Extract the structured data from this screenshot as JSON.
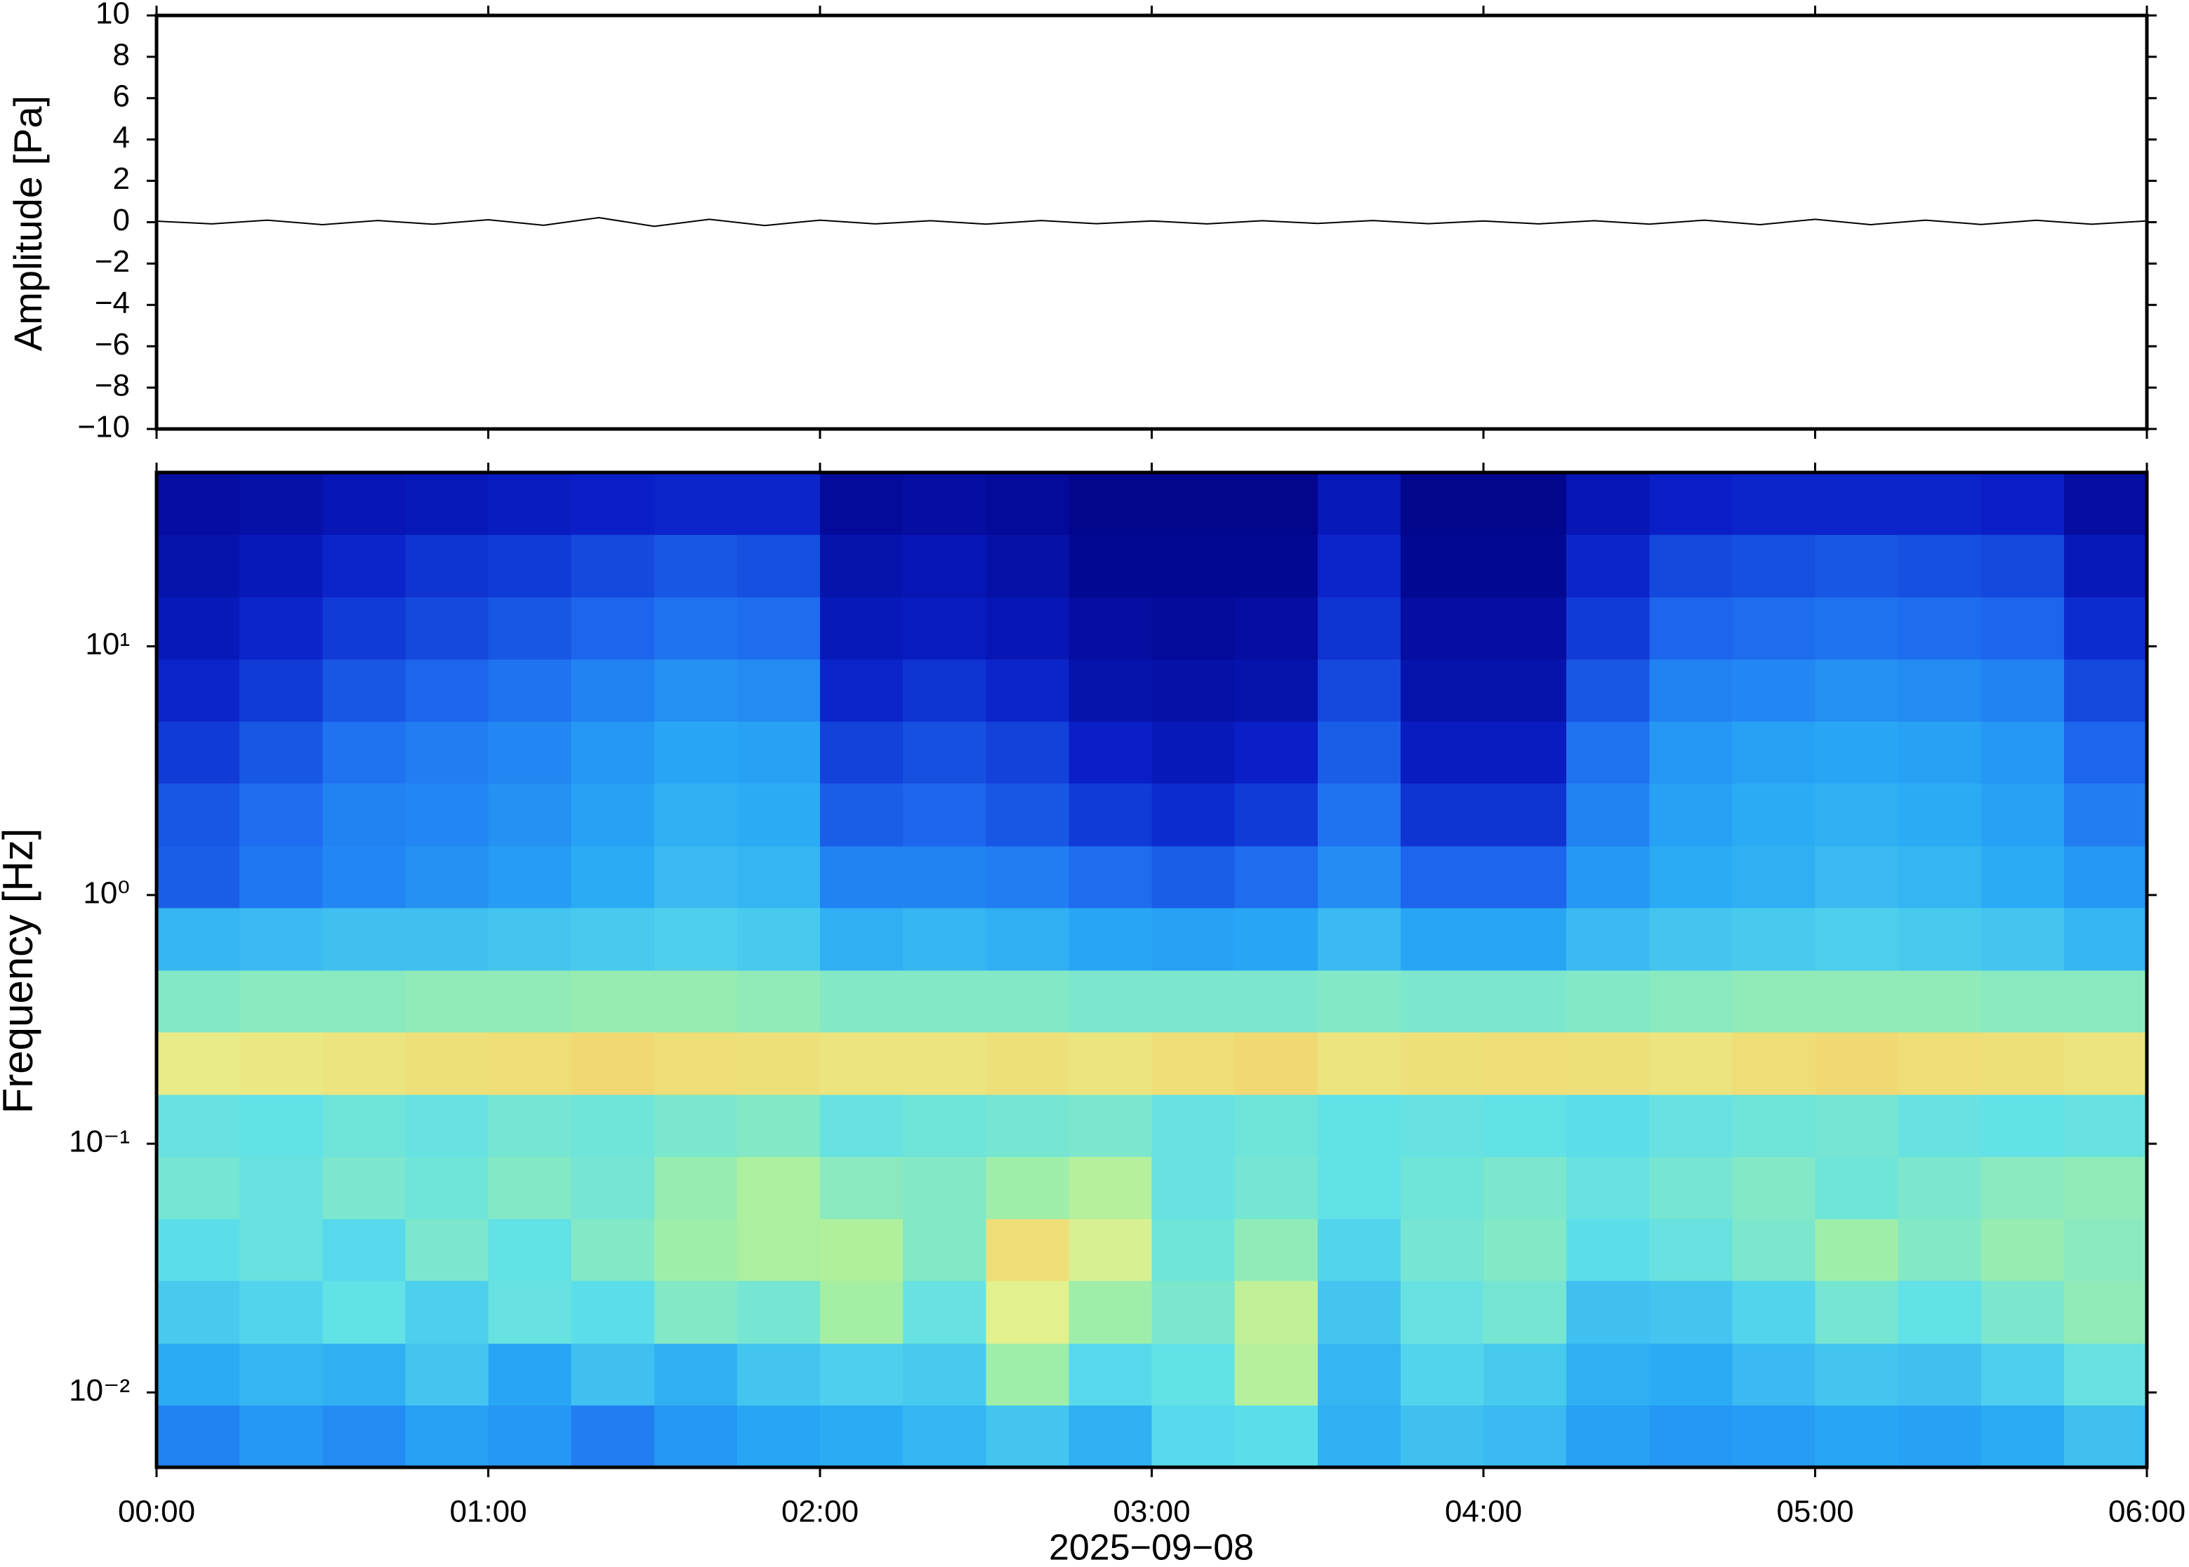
{
  "chart_data": [
    {
      "type": "line",
      "ylabel": "Amplitude [Pa]",
      "color": "#000000",
      "xlim": [
        "00:00",
        "06:00"
      ],
      "ylim": [
        -10,
        10
      ],
      "yticks": [
        {
          "value": -10,
          "label": "−10"
        },
        {
          "value": -8,
          "label": "−8"
        },
        {
          "value": -6,
          "label": "−6"
        },
        {
          "value": -4,
          "label": "−4"
        },
        {
          "value": -2,
          "label": "−2"
        },
        0,
        2,
        4,
        6,
        8,
        10
      ],
      "x": [
        "00:00",
        "00:10",
        "00:20",
        "00:30",
        "00:40",
        "00:50",
        "01:00",
        "01:10",
        "01:20",
        "01:30",
        "01:40",
        "01:50",
        "02:00",
        "02:10",
        "02:20",
        "02:30",
        "02:40",
        "02:50",
        "03:00",
        "03:10",
        "03:20",
        "03:30",
        "03:40",
        "03:50",
        "04:00",
        "04:10",
        "04:20",
        "04:30",
        "04:40",
        "04:50",
        "05:00",
        "05:10",
        "05:20",
        "05:30",
        "05:40",
        "05:50",
        "06:00"
      ],
      "values": [
        0.05,
        -0.08,
        0.1,
        -0.12,
        0.08,
        -0.1,
        0.12,
        -0.15,
        0.22,
        -0.2,
        0.14,
        -0.16,
        0.1,
        -0.08,
        0.07,
        -0.09,
        0.08,
        -0.07,
        0.06,
        -0.08,
        0.07,
        -0.06,
        0.08,
        -0.07,
        0.06,
        -0.08,
        0.07,
        -0.09,
        0.1,
        -0.12,
        0.14,
        -0.12,
        0.1,
        -0.11,
        0.09,
        -0.1,
        0.06
      ]
    },
    {
      "type": "heatmap",
      "xlabel": "2025−09−08",
      "ylabel": "Frequency [Hz]",
      "log_y": true,
      "xlim": [
        "00:00",
        "06:00"
      ],
      "xticks": [
        "00:00",
        "01:00",
        "02:00",
        "03:00",
        "04:00",
        "05:00",
        "06:00"
      ],
      "ylim": [
        0.005,
        50
      ],
      "yticks": [
        {
          "value": 0.01,
          "label": "10⁻²"
        },
        {
          "value": 0.1,
          "label": "10⁻¹"
        },
        {
          "value": 1,
          "label": "10⁰"
        },
        {
          "value": 10,
          "label": "10¹"
        }
      ],
      "zlim": [
        0,
        10
      ],
      "colormap": [
        "#000080",
        "#0a1fc8",
        "#1e6ef0",
        "#28a8f5",
        "#5ee0ea",
        "#a8f0a0",
        "#e6f08c",
        "#f8c860",
        "#f09040",
        "#d84030"
      ],
      "x": [
        "00:00",
        "00:15",
        "00:30",
        "00:45",
        "01:00",
        "01:15",
        "01:30",
        "01:45",
        "02:00",
        "02:15",
        "02:30",
        "02:45",
        "03:00",
        "03:15",
        "03:30",
        "03:45",
        "04:00",
        "04:15",
        "04:30",
        "04:45",
        "05:00",
        "05:15",
        "05:30",
        "05:45"
      ],
      "y": [
        0.005,
        0.0089,
        0.0158,
        0.0282,
        0.05,
        0.089,
        0.158,
        0.282,
        0.5,
        0.89,
        1.58,
        2.82,
        5.0,
        8.9,
        15.8,
        28.2
      ],
      "z": [
        [
          2.6,
          3.0,
          2.8,
          3.2,
          3.0,
          2.5,
          3.0,
          3.3,
          3.4,
          3.6,
          3.9,
          3.5,
          4.3,
          4.4,
          3.5,
          3.8,
          3.7,
          3.2,
          3.0,
          3.1,
          3.3,
          3.2,
          3.4,
          3.8
        ],
        [
          3.4,
          3.6,
          3.5,
          3.9,
          3.3,
          3.8,
          3.5,
          3.9,
          4.1,
          4.0,
          5.4,
          4.3,
          4.5,
          5.8,
          3.6,
          4.2,
          4.0,
          3.5,
          3.4,
          3.7,
          3.9,
          3.8,
          4.1,
          4.6
        ],
        [
          4.0,
          4.2,
          4.5,
          4.1,
          4.6,
          4.4,
          5.0,
          4.8,
          5.5,
          4.6,
          6.6,
          5.4,
          4.9,
          6.0,
          3.9,
          4.6,
          4.8,
          3.8,
          3.9,
          4.2,
          4.8,
          4.5,
          4.9,
          5.2
        ],
        [
          4.4,
          4.6,
          4.3,
          4.9,
          4.5,
          5.0,
          5.4,
          5.6,
          5.7,
          5.0,
          7.2,
          6.4,
          4.7,
          5.2,
          4.2,
          4.8,
          5.0,
          4.4,
          4.6,
          4.9,
          5.4,
          5.0,
          5.3,
          5.1
        ],
        [
          4.8,
          4.6,
          4.9,
          4.7,
          5.0,
          4.8,
          5.3,
          5.6,
          5.1,
          5.0,
          5.4,
          5.8,
          4.6,
          4.8,
          4.5,
          4.7,
          4.9,
          4.6,
          4.8,
          5.0,
          4.7,
          4.9,
          5.1,
          5.2
        ],
        [
          4.6,
          4.5,
          4.7,
          4.6,
          4.8,
          4.7,
          4.9,
          5.0,
          4.6,
          4.7,
          4.8,
          4.9,
          4.6,
          4.7,
          4.5,
          4.6,
          4.5,
          4.4,
          4.6,
          4.7,
          4.8,
          4.6,
          4.5,
          4.6
        ],
        [
          6.8,
          6.9,
          7.0,
          7.1,
          7.2,
          7.3,
          7.2,
          7.1,
          7.0,
          7.0,
          7.1,
          7.0,
          7.2,
          7.3,
          7.0,
          7.1,
          7.2,
          7.1,
          7.0,
          7.2,
          7.3,
          7.2,
          7.1,
          7.0
        ],
        [
          5.0,
          5.1,
          5.1,
          5.2,
          5.2,
          5.3,
          5.3,
          5.2,
          5.0,
          5.0,
          5.0,
          4.9,
          4.9,
          4.9,
          5.0,
          4.9,
          4.9,
          5.0,
          5.1,
          5.2,
          5.2,
          5.2,
          5.1,
          5.1
        ],
        [
          3.6,
          3.7,
          3.8,
          3.8,
          3.9,
          4.0,
          4.1,
          4.0,
          3.5,
          3.6,
          3.5,
          3.3,
          3.2,
          3.3,
          3.7,
          3.3,
          3.3,
          3.7,
          3.9,
          4.0,
          4.1,
          4.0,
          3.9,
          3.6
        ],
        [
          2.0,
          2.4,
          2.7,
          2.9,
          3.1,
          3.4,
          3.7,
          3.6,
          2.6,
          2.6,
          2.5,
          2.2,
          2.0,
          2.2,
          2.8,
          2.1,
          2.1,
          3.0,
          3.4,
          3.5,
          3.7,
          3.6,
          3.4,
          3.0
        ],
        [
          1.9,
          2.2,
          2.6,
          2.7,
          2.9,
          3.2,
          3.5,
          3.4,
          2.0,
          2.1,
          1.9,
          1.5,
          1.3,
          1.5,
          2.3,
          1.4,
          1.4,
          2.6,
          3.2,
          3.4,
          3.5,
          3.4,
          3.2,
          2.5
        ],
        [
          1.5,
          1.9,
          2.3,
          2.5,
          2.7,
          3.0,
          3.3,
          3.2,
          1.6,
          1.8,
          1.6,
          1.1,
          0.9,
          1.1,
          2.0,
          1.0,
          1.0,
          2.3,
          3.0,
          3.2,
          3.3,
          3.2,
          3.0,
          2.1
        ],
        [
          1.2,
          1.5,
          1.9,
          2.1,
          2.3,
          2.6,
          2.9,
          2.8,
          1.2,
          1.4,
          1.2,
          0.7,
          0.6,
          0.7,
          1.7,
          0.7,
          0.7,
          1.9,
          2.6,
          2.7,
          2.9,
          2.8,
          2.6,
          1.7
        ],
        [
          0.9,
          1.2,
          1.5,
          1.7,
          1.9,
          2.1,
          2.3,
          2.2,
          0.9,
          1.0,
          0.8,
          0.5,
          0.4,
          0.5,
          1.4,
          0.5,
          0.5,
          1.5,
          2.1,
          2.2,
          2.3,
          2.2,
          2.1,
          1.3
        ],
        [
          0.7,
          0.9,
          1.2,
          1.4,
          1.5,
          1.7,
          1.9,
          1.8,
          0.7,
          0.8,
          0.6,
          0.3,
          0.3,
          0.3,
          1.2,
          0.3,
          0.3,
          1.2,
          1.7,
          1.8,
          1.9,
          1.8,
          1.7,
          0.9
        ],
        [
          0.5,
          0.6,
          0.8,
          0.9,
          1.0,
          1.1,
          1.2,
          1.2,
          0.4,
          0.5,
          0.4,
          0.2,
          0.2,
          0.2,
          0.9,
          0.2,
          0.2,
          0.8,
          1.1,
          1.2,
          1.2,
          1.2,
          1.1,
          0.5
        ]
      ]
    }
  ]
}
